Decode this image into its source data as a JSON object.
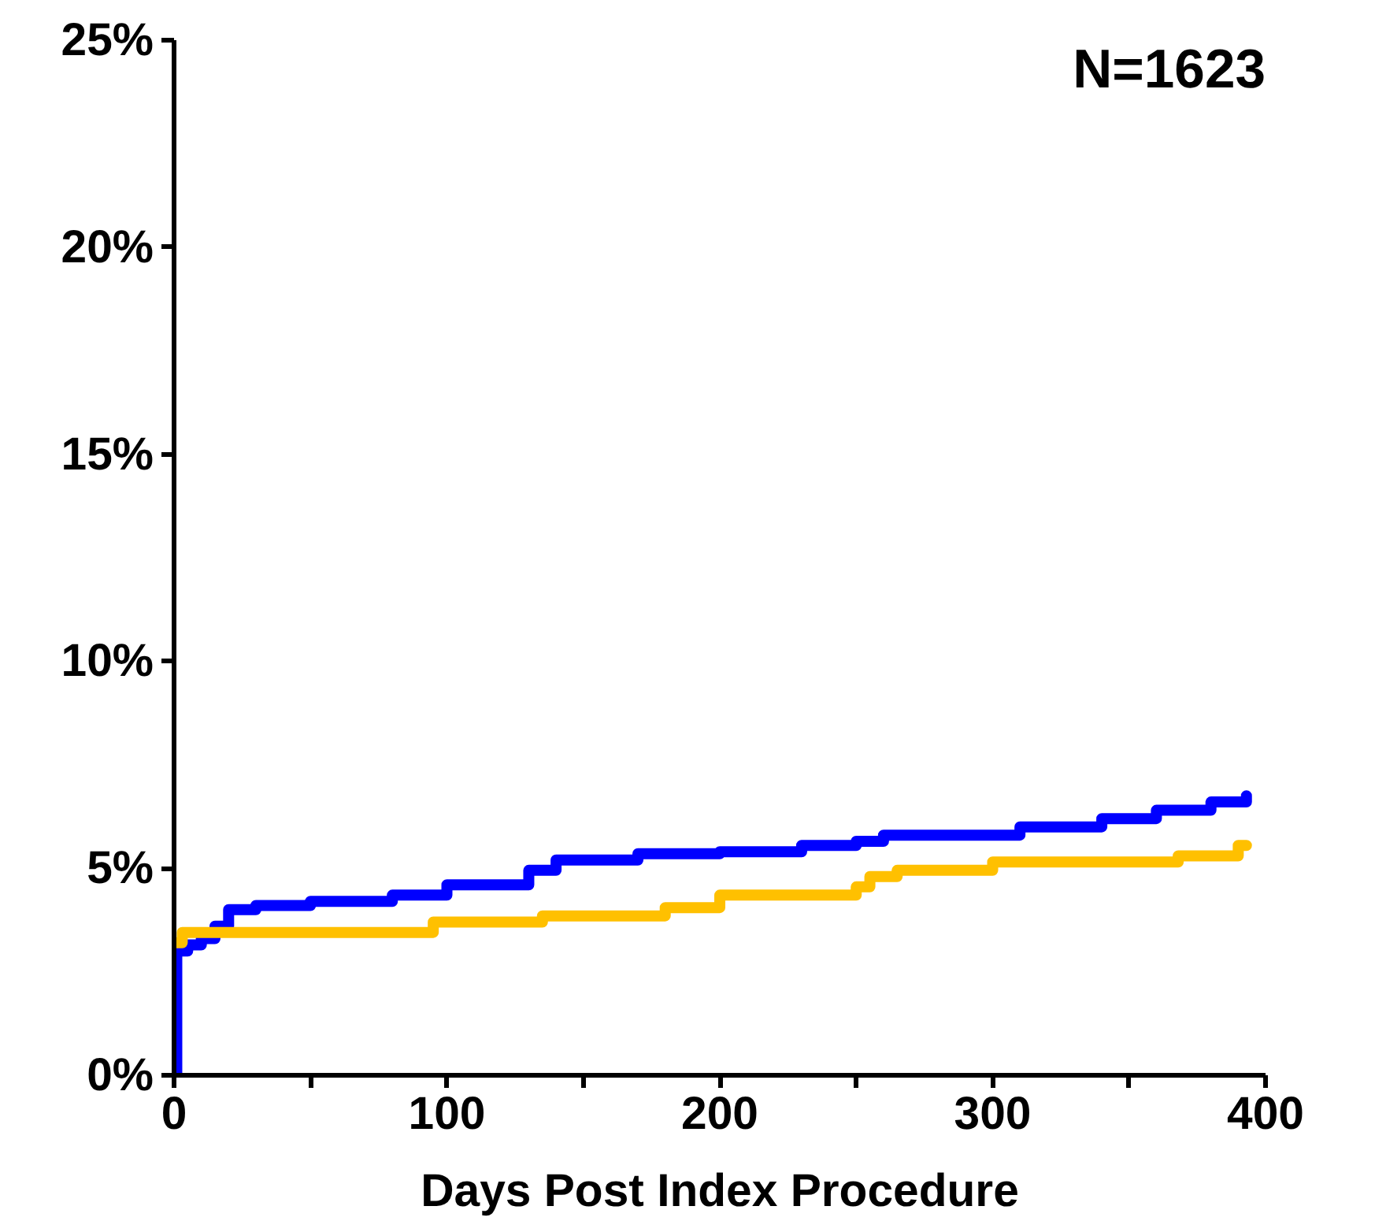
{
  "chart_data": {
    "type": "step",
    "xlabel": "Days Post Index Procedure",
    "annotations": [
      "N=1623"
    ],
    "series": [
      {
        "color": "#0000ff",
        "x": [
          0,
          1,
          5,
          10,
          15,
          20,
          30,
          50,
          80,
          100,
          130,
          140,
          170,
          200,
          230,
          250,
          260,
          310,
          340,
          360,
          380,
          393
        ],
        "values": [
          0,
          3.0,
          3.15,
          3.3,
          3.6,
          4.0,
          4.1,
          4.2,
          4.35,
          4.6,
          4.95,
          5.2,
          5.35,
          5.4,
          5.55,
          5.65,
          5.8,
          6.0,
          6.2,
          6.4,
          6.6,
          6.75
        ]
      },
      {
        "color": "#ffc000",
        "x": [
          0,
          3,
          95,
          135,
          180,
          200,
          250,
          255,
          265,
          300,
          368,
          390,
          393
        ],
        "values": [
          3.2,
          3.45,
          3.7,
          3.85,
          4.05,
          4.35,
          4.55,
          4.8,
          4.95,
          5.15,
          5.3,
          5.55,
          5.55
        ]
      }
    ],
    "xlim": [
      0,
      400
    ],
    "xticks": [
      0,
      {
        "value": 50,
        "label": null
      },
      100,
      {
        "value": 150,
        "label": null
      },
      200,
      {
        "value": 250,
        "label": null
      },
      300,
      {
        "value": 350,
        "label": null
      },
      400
    ],
    "ylim": [
      0,
      25
    ],
    "yticks": [
      {
        "value": 0,
        "label": "0%"
      },
      {
        "value": 5,
        "label": "5%"
      },
      {
        "value": 10,
        "label": "10%"
      },
      {
        "value": 15,
        "label": "15%"
      },
      {
        "value": 20,
        "label": "20%"
      },
      {
        "value": 25,
        "label": "25%"
      }
    ],
    "grid": false,
    "line_style": "solid"
  }
}
